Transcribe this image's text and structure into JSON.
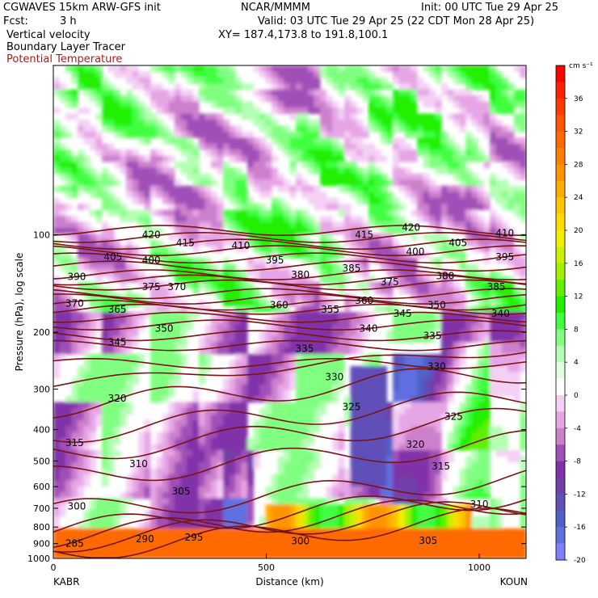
{
  "header": {
    "model": "CGWAVES 15km ARW-GFS init",
    "center": "NCAR/MMMM",
    "init": "Init: 00 UTC Tue 29 Apr 25",
    "fcst_label": "Fcst:",
    "fcst_value": "3 h",
    "valid": "Valid: 03 UTC Tue 29 Apr 25 (22 CDT Mon 28 Apr 25)",
    "field1": "Vertical velocity",
    "xy": "XY= 187.4,173.8 to 191.8,100.1",
    "field2": "Boundary Layer Tracer",
    "field3": "Potential Temperature"
  },
  "colors": {
    "theta_contour": "#7a1414",
    "title_red": "#a02020"
  },
  "chart_data": {
    "type": "heatmap",
    "description_fields": [
      "Vertical velocity",
      "Boundary Layer Tracer",
      "Potential Temperature"
    ],
    "xlabel": "Distance (km)",
    "ylabel": "Pressure (hPa), log scale",
    "x_ticks": [
      0,
      500,
      1000
    ],
    "x_range": [
      0,
      1110
    ],
    "y_ticks": [
      100,
      200,
      300,
      400,
      500,
      600,
      700,
      800,
      900,
      1000
    ],
    "y_range": [
      30,
      1000
    ],
    "y_scale": "log",
    "x_endpoints": {
      "left": "KABR",
      "right": "KOUN"
    },
    "colorbar": {
      "unit": "cm s⁻¹",
      "labels": [
        "36",
        "32",
        "28",
        "24",
        "20",
        "16",
        "12",
        "8",
        "4",
        "0",
        "-4",
        "-8",
        "-12",
        "-16",
        "-20"
      ],
      "levels": [
        38,
        36,
        34,
        32,
        30,
        28,
        26,
        24,
        22,
        20,
        18,
        16,
        14,
        12,
        10,
        8,
        6,
        4,
        2,
        0,
        -2,
        -4,
        -6,
        -8,
        -10,
        -12,
        -14,
        -16,
        -18,
        -20
      ],
      "colors": [
        "#ff0000",
        "#ff2000",
        "#ff3a00",
        "#ff5400",
        "#ff6a00",
        "#ff8000",
        "#ff9400",
        "#ffac00",
        "#ffc400",
        "#ffdc00",
        "#f0f000",
        "#c8f000",
        "#a0f000",
        "#60f000",
        "#20f000",
        "#40ff40",
        "#80ff80",
        "#b4ffb4",
        "#e0ffe0",
        "#ffffff",
        "#f4d0f4",
        "#e6a6e6",
        "#cc80cc",
        "#a050b8",
        "#8030a8",
        "#7040a8",
        "#6050b8",
        "#5060c8",
        "#6070e0",
        "#8080ff"
      ]
    },
    "theta_contour_labels": [
      {
        "x": 50,
        "p": 900,
        "v": "285"
      },
      {
        "x": 215,
        "p": 870,
        "v": "290"
      },
      {
        "x": 330,
        "p": 860,
        "v": "295"
      },
      {
        "x": 580,
        "p": 885,
        "v": "300"
      },
      {
        "x": 880,
        "p": 880,
        "v": "305"
      },
      {
        "x": 55,
        "p": 690,
        "v": "300"
      },
      {
        "x": 300,
        "p": 620,
        "v": "305"
      },
      {
        "x": 200,
        "p": 510,
        "v": "310"
      },
      {
        "x": 1000,
        "p": 680,
        "v": "310"
      },
      {
        "x": 50,
        "p": 440,
        "v": "315"
      },
      {
        "x": 910,
        "p": 520,
        "v": "315"
      },
      {
        "x": 850,
        "p": 445,
        "v": "320"
      },
      {
        "x": 150,
        "p": 320,
        "v": "320"
      },
      {
        "x": 940,
        "p": 365,
        "v": "325"
      },
      {
        "x": 700,
        "p": 340,
        "v": "325"
      },
      {
        "x": 660,
        "p": 275,
        "v": "330"
      },
      {
        "x": 900,
        "p": 255,
        "v": "330"
      },
      {
        "x": 590,
        "p": 225,
        "v": "335"
      },
      {
        "x": 890,
        "p": 205,
        "v": "335"
      },
      {
        "x": 740,
        "p": 195,
        "v": "340"
      },
      {
        "x": 1050,
        "p": 175,
        "v": "340"
      },
      {
        "x": 150,
        "p": 215,
        "v": "345"
      },
      {
        "x": 820,
        "p": 175,
        "v": "345"
      },
      {
        "x": 260,
        "p": 195,
        "v": "350"
      },
      {
        "x": 900,
        "p": 165,
        "v": "350"
      },
      {
        "x": 650,
        "p": 170,
        "v": "355"
      },
      {
        "x": 530,
        "p": 165,
        "v": "360"
      },
      {
        "x": 730,
        "p": 160,
        "v": "360"
      },
      {
        "x": 150,
        "p": 170,
        "v": "365"
      },
      {
        "x": 50,
        "p": 163,
        "v": "370"
      },
      {
        "x": 290,
        "p": 145,
        "v": "370"
      },
      {
        "x": 230,
        "p": 145,
        "v": "375"
      },
      {
        "x": 790,
        "p": 140,
        "v": "375"
      },
      {
        "x": 580,
        "p": 133,
        "v": "380"
      },
      {
        "x": 920,
        "p": 134,
        "v": "380"
      },
      {
        "x": 700,
        "p": 127,
        "v": "385"
      },
      {
        "x": 1040,
        "p": 145,
        "v": "385"
      },
      {
        "x": 55,
        "p": 135,
        "v": "390"
      },
      {
        "x": 520,
        "p": 120,
        "v": "395"
      },
      {
        "x": 1060,
        "p": 117,
        "v": "395"
      },
      {
        "x": 230,
        "p": 120,
        "v": "400"
      },
      {
        "x": 850,
        "p": 113,
        "v": "400"
      },
      {
        "x": 140,
        "p": 117,
        "v": "405"
      },
      {
        "x": 950,
        "p": 106,
        "v": "405"
      },
      {
        "x": 440,
        "p": 108,
        "v": "410"
      },
      {
        "x": 1060,
        "p": 99,
        "v": "410"
      },
      {
        "x": 310,
        "p": 106,
        "v": "415"
      },
      {
        "x": 730,
        "p": 100,
        "v": "415"
      },
      {
        "x": 230,
        "p": 100,
        "v": "420"
      },
      {
        "x": 840,
        "p": 95,
        "v": "420"
      }
    ],
    "theta_levels": [
      285,
      290,
      295,
      300,
      305,
      310,
      315,
      320,
      325,
      330,
      335,
      340,
      345,
      350,
      355,
      360,
      365,
      370,
      375,
      380,
      385,
      390,
      395,
      400,
      405,
      410,
      415,
      420
    ]
  }
}
